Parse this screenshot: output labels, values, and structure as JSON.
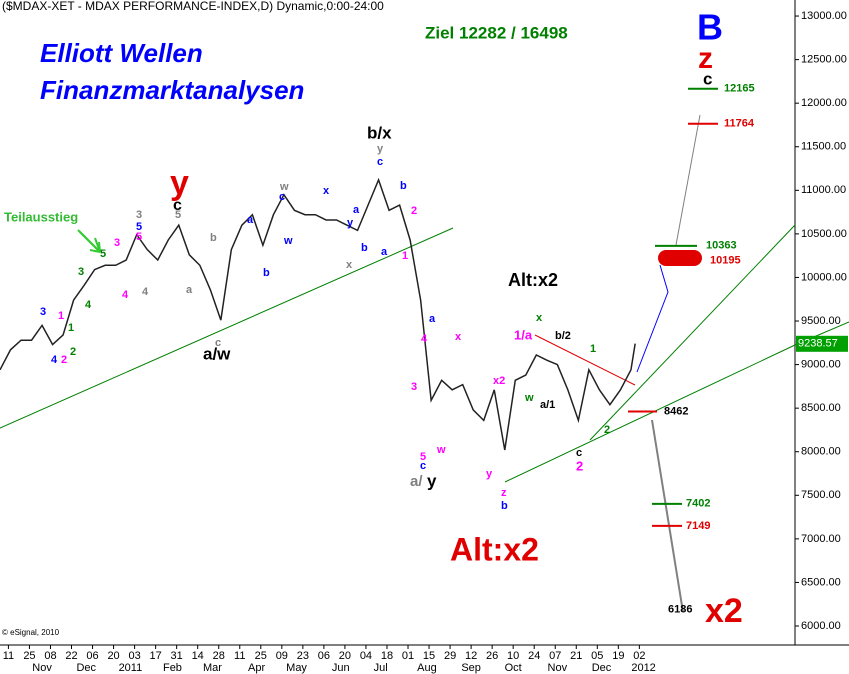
{
  "header": "($MDAX-XET - MDAX PERFORMANCE-INDEX,D) Dynamic,0:00-24:00",
  "copyright": "© eSignal, 2010",
  "chart_data": {
    "type": "line",
    "x": [
      0,
      5,
      10,
      15,
      20,
      25,
      30,
      35,
      40,
      45,
      50,
      55,
      60,
      65,
      70,
      75,
      80,
      85,
      90,
      95,
      100,
      105,
      110,
      115,
      120,
      125,
      130,
      135,
      140,
      145,
      150,
      155,
      160,
      165,
      170,
      175,
      180,
      185,
      190,
      195,
      200,
      205,
      210,
      215,
      220,
      225,
      230,
      235,
      240,
      245,
      250,
      255,
      260,
      265,
      270,
      275,
      280,
      285,
      290,
      295,
      300,
      302
    ],
    "series": [
      {
        "color": "#222222",
        "values": [
          8940,
          9170,
          9280,
          9280,
          9450,
          9230,
          9340,
          9740,
          9910,
          10090,
          10140,
          10140,
          10200,
          10490,
          10320,
          10200,
          10430,
          10600,
          10260,
          10140,
          9860,
          9510,
          10320,
          10600,
          10720,
          10370,
          10720,
          10950,
          10770,
          10720,
          10720,
          10660,
          10660,
          10600,
          10540,
          10830,
          11120,
          10770,
          10830,
          10430,
          9740,
          8590,
          8820,
          8710,
          8770,
          8480,
          8360,
          8710,
          8020,
          8820,
          8880,
          9110,
          9050,
          9000,
          8710,
          8360,
          8940,
          8710,
          8540,
          8710,
          8940,
          9240
        ]
      }
    ],
    "last": {
      "value": 9238.57,
      "label": "9238.57",
      "color": "#00a000"
    },
    "xlim": [
      0,
      378
    ],
    "xticks": [
      {
        "value": 4,
        "label": "11"
      },
      {
        "value": 14,
        "label": "25"
      },
      {
        "value": 24,
        "label": "08"
      },
      {
        "value": 34,
        "label": "22"
      },
      {
        "value": 44,
        "label": "06"
      },
      {
        "value": 54,
        "label": "20"
      },
      {
        "value": 64,
        "label": "03"
      },
      {
        "value": 74,
        "label": "17"
      },
      {
        "value": 84,
        "label": "31"
      },
      {
        "value": 94,
        "label": "14"
      },
      {
        "value": 104,
        "label": "28"
      },
      {
        "value": 114,
        "label": "11"
      },
      {
        "value": 124,
        "label": "25"
      },
      {
        "value": 134,
        "label": "09"
      },
      {
        "value": 144,
        "label": "23"
      },
      {
        "value": 154,
        "label": "06"
      },
      {
        "value": 164,
        "label": "20"
      },
      {
        "value": 174,
        "label": "04"
      },
      {
        "value": 184,
        "label": "18"
      },
      {
        "value": 194,
        "label": "01"
      },
      {
        "value": 204,
        "label": "15"
      },
      {
        "value": 214,
        "label": "29"
      },
      {
        "value": 224,
        "label": "12"
      },
      {
        "value": 234,
        "label": "26"
      },
      {
        "value": 244,
        "label": "10"
      },
      {
        "value": 254,
        "label": "24"
      },
      {
        "value": 264,
        "label": "07"
      },
      {
        "value": 274,
        "label": "21"
      },
      {
        "value": 284,
        "label": "05"
      },
      {
        "value": 294,
        "label": "19"
      },
      {
        "value": 304,
        "label": "02"
      }
    ],
    "month_ticks": [
      {
        "value": 20,
        "label": "Nov"
      },
      {
        "value": 41,
        "label": "Dec"
      },
      {
        "value": 62,
        "label": "2011"
      },
      {
        "value": 82,
        "label": "Feb"
      },
      {
        "value": 101,
        "label": "Mar"
      },
      {
        "value": 122,
        "label": "Apr"
      },
      {
        "value": 141,
        "label": "May"
      },
      {
        "value": 162,
        "label": "Jun"
      },
      {
        "value": 181,
        "label": "Jul"
      },
      {
        "value": 203,
        "label": "Aug"
      },
      {
        "value": 224,
        "label": "Sep"
      },
      {
        "value": 244,
        "label": "Oct"
      },
      {
        "value": 265,
        "label": "Nov"
      },
      {
        "value": 286,
        "label": "Dec"
      },
      {
        "value": 306,
        "label": "2012"
      }
    ],
    "ylim": [
      5782,
      13184
    ],
    "yticks": [
      {
        "value": 13000,
        "label": "13000.00"
      },
      {
        "value": 12500,
        "label": "12500.00"
      },
      {
        "value": 12000,
        "label": "12000.00"
      },
      {
        "value": 11500,
        "label": "11500.00"
      },
      {
        "value": 11000,
        "label": "11000.00"
      },
      {
        "value": 10500,
        "label": "10500.00"
      },
      {
        "value": 10000,
        "label": "10000.00"
      },
      {
        "value": 9500,
        "label": "9500.00"
      },
      {
        "value": 9000,
        "label": "9000.00"
      },
      {
        "value": 8500,
        "label": "8500.00"
      },
      {
        "value": 8000,
        "label": "8000.00"
      },
      {
        "value": 7500,
        "label": "7500.00"
      },
      {
        "value": 7000,
        "label": "7000.00"
      },
      {
        "value": 6500,
        "label": "6500.00"
      },
      {
        "value": 6000,
        "label": "6000.00"
      }
    ],
    "levels": [
      {
        "value": 12165,
        "color": "#008000"
      },
      {
        "value": 11764,
        "color": "#e00000"
      },
      {
        "value": 10363,
        "color": "#008000"
      },
      {
        "value": 10195,
        "color": "#e00000"
      },
      {
        "value": 8462,
        "color": "#e00000"
      },
      {
        "value": 7402,
        "color": "#008000"
      },
      {
        "value": 7149,
        "color": "#e00000"
      },
      {
        "value": 6186,
        "color": "#000000"
      }
    ],
    "annotations": [
      "Elliott Wellen",
      "Finanzmarktanalysen",
      "Ziel 12282 / 16498",
      "B",
      "z",
      "c",
      "y",
      "c",
      "b/x",
      "a/w",
      "Alt:x2",
      "Alt:x2",
      "x2",
      "Teilausstieg",
      "a/",
      "y",
      "4",
      "2",
      "2",
      "3",
      "1",
      "1",
      "3",
      "4",
      "5",
      "4",
      "3",
      "4",
      "3",
      "5",
      "5",
      "5",
      "a",
      "b",
      "c",
      "a",
      "b",
      "c",
      "w",
      "w",
      "x",
      "a",
      "y",
      "b",
      "x",
      "a",
      "y",
      "c",
      "b",
      "2",
      "1",
      "a",
      "4",
      "x",
      "3",
      "5",
      "c",
      "w",
      "x2",
      "w",
      "y",
      "z",
      "b",
      "x",
      "1/a",
      "b/2",
      "1",
      "a/1",
      "c",
      "2",
      "2"
    ]
  }
}
